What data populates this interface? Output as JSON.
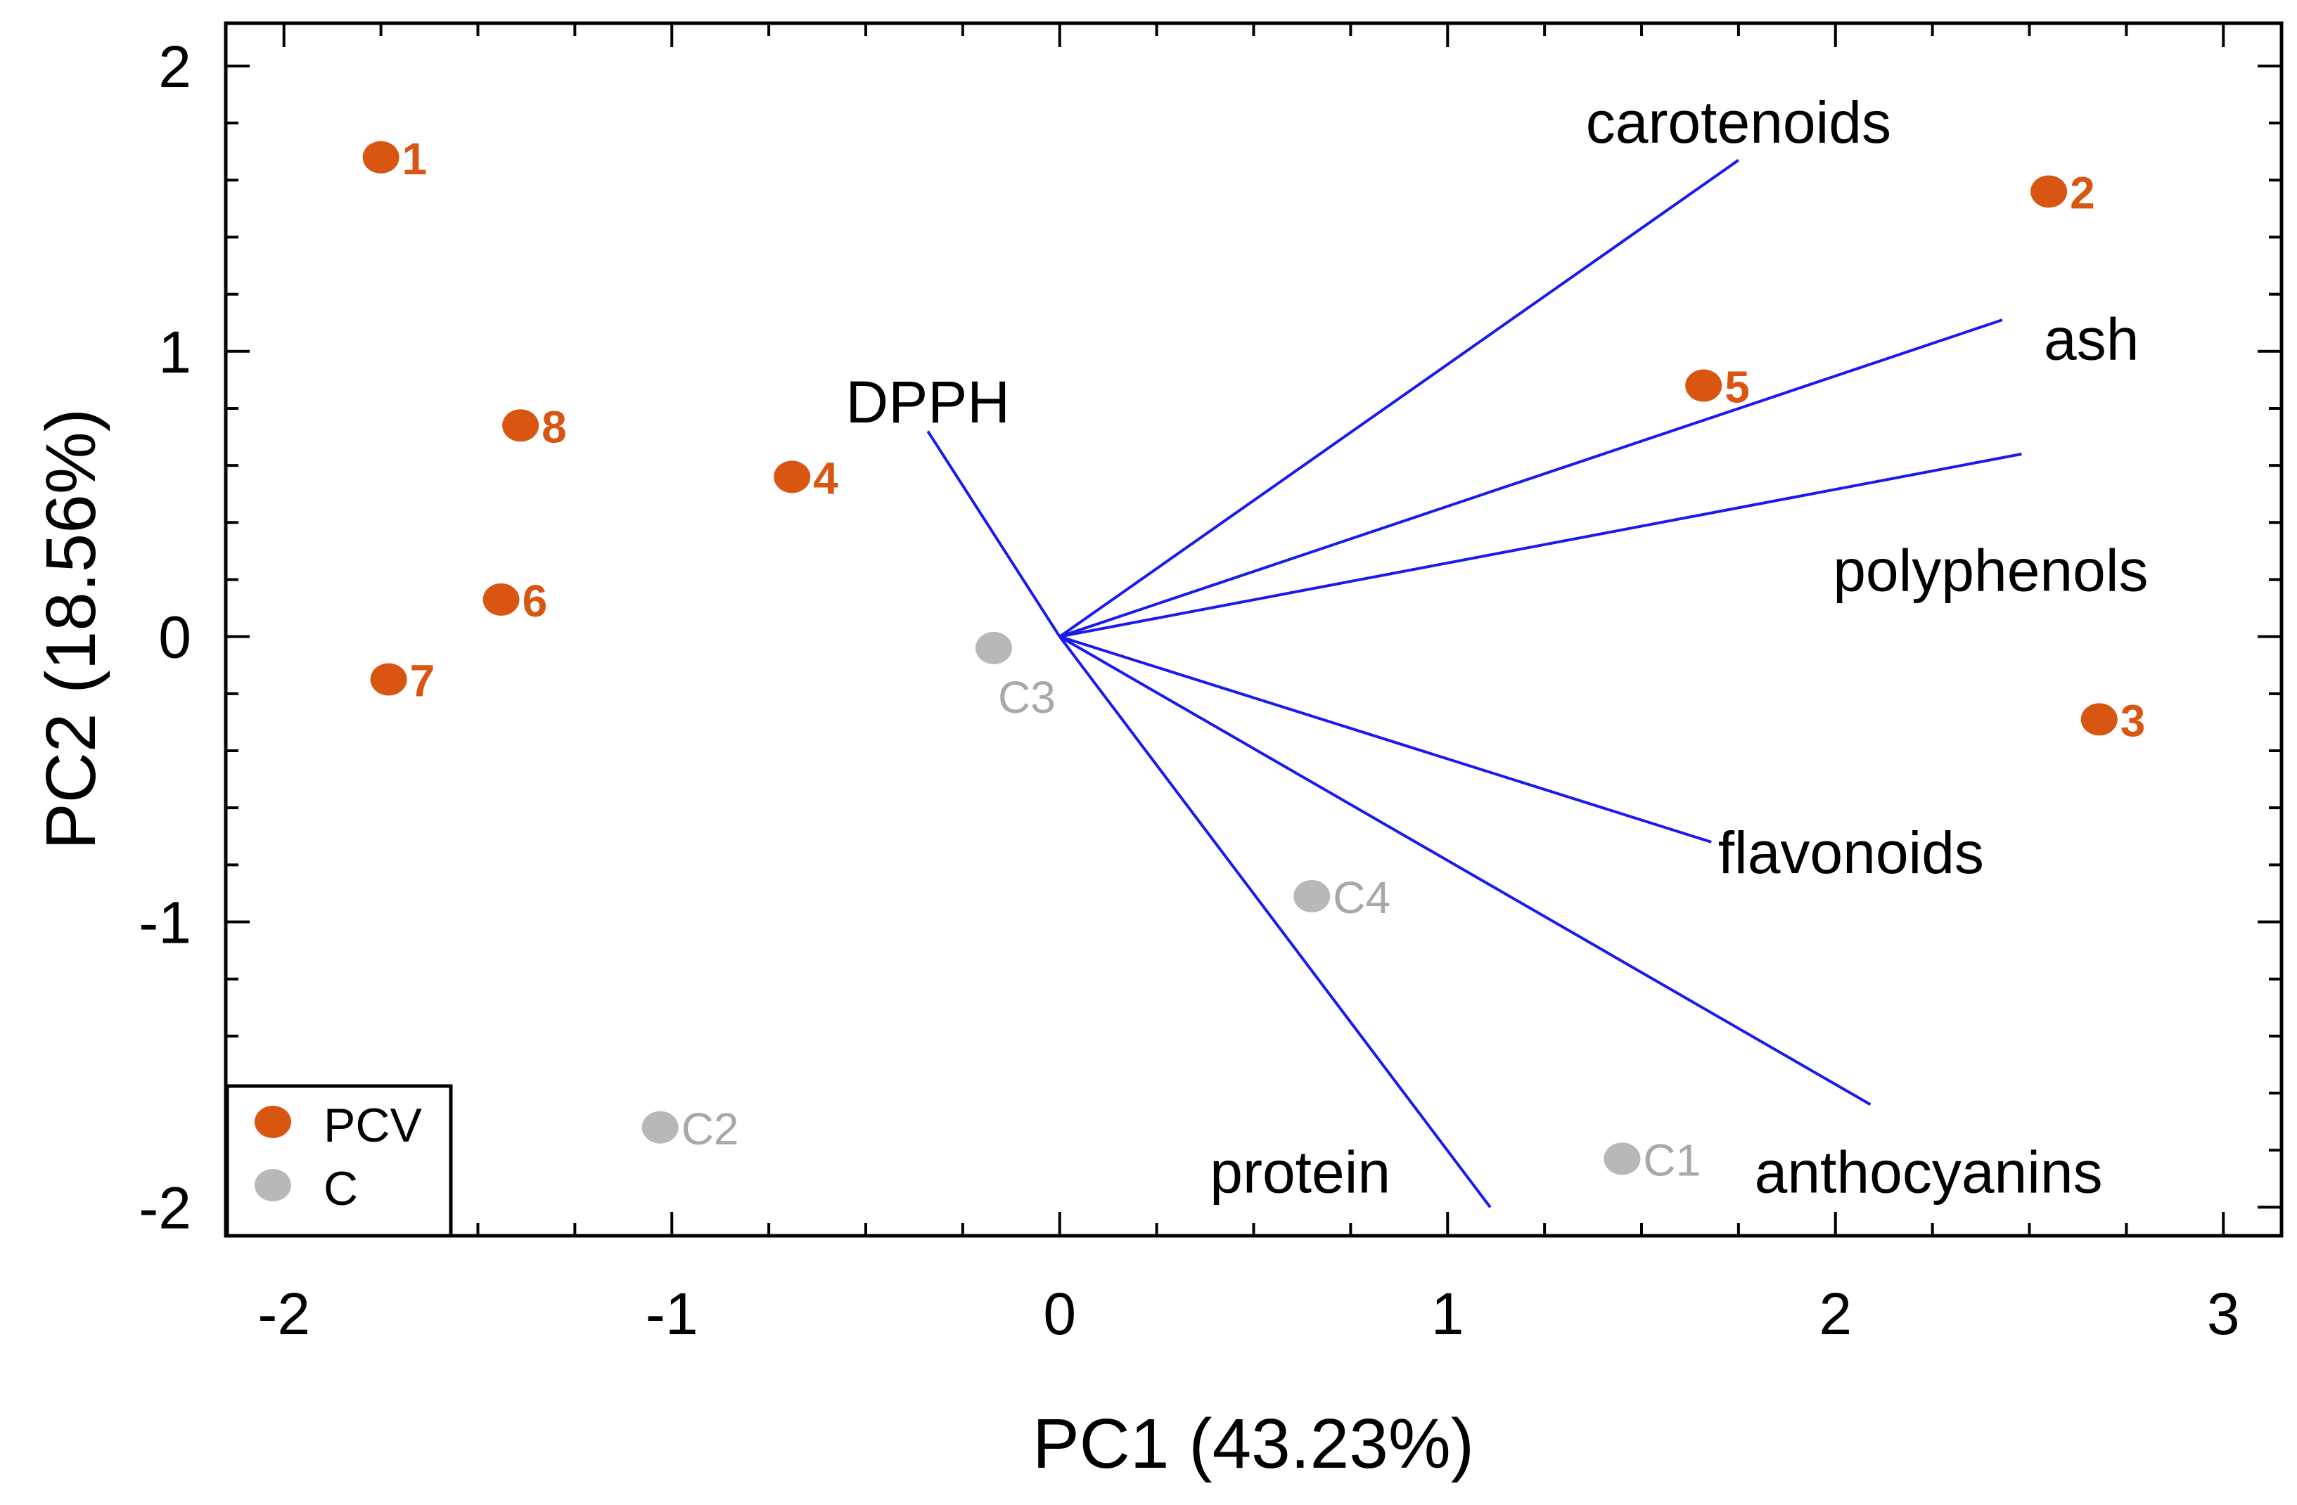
{
  "chart_data": {
    "type": "scatter",
    "title": "",
    "xlabel": "PC1 (43.23%)",
    "ylabel": "PC2 (18.56%)",
    "xlim": [
      -2.15,
      3.15
    ],
    "ylim": [
      -2.1,
      2.15
    ],
    "xticks": [
      -2,
      -1,
      0,
      1,
      2,
      3
    ],
    "yticks": [
      -2,
      -1,
      0,
      1,
      2
    ],
    "xtick_labels": [
      "-2",
      "-1",
      "0",
      "1",
      "2",
      "3"
    ],
    "ytick_labels": [
      "-2",
      "-1",
      "0",
      "1",
      "2"
    ],
    "series": [
      {
        "name": "PCV",
        "color": "#d95512",
        "points": [
          {
            "label": "1",
            "x": -1.75,
            "y": 1.68
          },
          {
            "label": "2",
            "x": 2.55,
            "y": 1.56
          },
          {
            "label": "3",
            "x": 2.68,
            "y": -0.29
          },
          {
            "label": "4",
            "x": -0.69,
            "y": 0.56
          },
          {
            "label": "5",
            "x": 1.66,
            "y": 0.88
          },
          {
            "label": "6",
            "x": -1.44,
            "y": 0.13
          },
          {
            "label": "7",
            "x": -1.73,
            "y": -0.15
          },
          {
            "label": "8",
            "x": -1.39,
            "y": 0.74
          }
        ]
      },
      {
        "name": "C",
        "color": "#b8b8b8",
        "points": [
          {
            "label": "C1",
            "x": 1.45,
            "y": -1.83
          },
          {
            "label": "C2",
            "x": -1.03,
            "y": -1.72
          },
          {
            "label": "C3",
            "x": -0.17,
            "y": -0.04
          },
          {
            "label": "C4",
            "x": 0.65,
            "y": -0.91
          }
        ]
      }
    ],
    "loadings": {
      "color": "#1a1aee",
      "vectors": [
        {
          "name": "carotenoids",
          "x": 1.75,
          "y": 1.67,
          "label_x": 1.75,
          "label_y": 1.8
        },
        {
          "name": "ash",
          "x": 2.43,
          "y": 1.11,
          "label_x": 2.66,
          "label_y": 1.04
        },
        {
          "name": "polyphenols",
          "x": 2.48,
          "y": 0.64,
          "label_x": 2.4,
          "label_y": 0.23
        },
        {
          "name": "DPPH",
          "x": -0.34,
          "y": 0.72,
          "label_x": -0.34,
          "label_y": 0.82
        },
        {
          "name": "flavonoids",
          "x": 1.68,
          "y": -0.72,
          "label_x": 2.04,
          "label_y": -0.76
        },
        {
          "name": "anthocyanins",
          "x": 2.09,
          "y": -1.64,
          "label_x": 2.24,
          "label_y": -1.88
        },
        {
          "name": "protein",
          "x": 1.11,
          "y": -2.0,
          "label_x": 0.62,
          "label_y": -1.88
        }
      ]
    },
    "legend": {
      "position": "bottom-left",
      "entries": [
        {
          "name": "PCV",
          "color": "#d95512"
        },
        {
          "name": "C",
          "color": "#b8b8b8"
        }
      ]
    }
  }
}
